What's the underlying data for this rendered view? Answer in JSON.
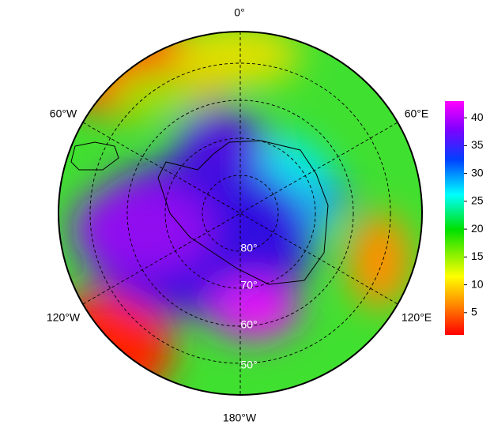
{
  "longitude_labels": [
    "0°",
    "60°E",
    "120°E",
    "180°W",
    "120°W",
    "60°W"
  ],
  "latitude_labels": [
    "80°",
    "70°",
    "60°",
    "50°"
  ],
  "colorbar": {
    "lim": [
      1,
      43
    ],
    "ticks": [
      5,
      10,
      15,
      20,
      25,
      30,
      35,
      40
    ]
  }
}
